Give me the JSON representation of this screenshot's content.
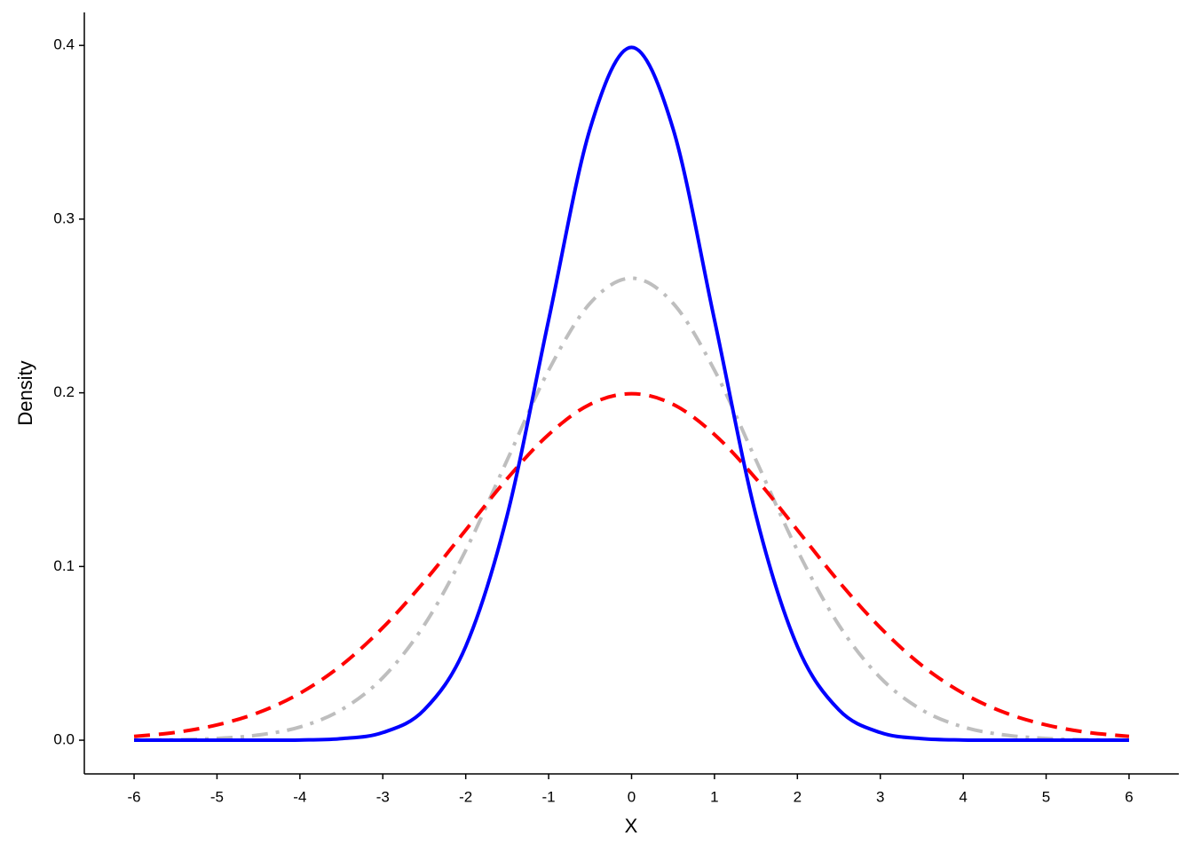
{
  "chart_data": {
    "type": "line",
    "x_label": "X",
    "y_label": "Density",
    "x": [
      -6,
      -5.5,
      -5,
      -4.5,
      -4,
      -3.5,
      -3,
      -2.5,
      -2,
      -1.5,
      -1,
      -0.5,
      0,
      0.5,
      1,
      1.5,
      2,
      2.5,
      3,
      3.5,
      4,
      4.5,
      5,
      5.5,
      6
    ],
    "series": [
      {
        "color": "#bebebe",
        "linetype": "dotdash",
        "values": [
          0.0001,
          0.0003,
          0.001,
          0.003,
          0.0076,
          0.0175,
          0.036,
          0.0663,
          0.1093,
          0.1613,
          0.213,
          0.2516,
          0.266,
          0.2516,
          0.213,
          0.1613,
          0.1093,
          0.0663,
          0.036,
          0.0175,
          0.0076,
          0.003,
          0.001,
          0.0003,
          0.0001
        ]
      },
      {
        "color": "#ff0000",
        "linetype": "dashed",
        "values": [
          0.0022,
          0.0045,
          0.0088,
          0.0159,
          0.027,
          0.0431,
          0.0648,
          0.0913,
          0.121,
          0.1506,
          0.176,
          0.1934,
          0.1995,
          0.1934,
          0.176,
          0.1506,
          0.121,
          0.0913,
          0.0648,
          0.0431,
          0.027,
          0.0159,
          0.0088,
          0.0045,
          0.0022
        ]
      },
      {
        "color": "#0000ff",
        "linetype": "solid",
        "values": [
          0.0,
          0.0,
          0.0,
          0.0,
          0.0001,
          0.0009,
          0.0044,
          0.0175,
          0.054,
          0.1295,
          0.242,
          0.3521,
          0.3989,
          0.3521,
          0.242,
          0.1295,
          0.054,
          0.0175,
          0.0044,
          0.0009,
          0.0001,
          0.0,
          0.0,
          0.0,
          0.0
        ]
      }
    ],
    "xlim": [
      -6.6,
      6.6
    ],
    "ylim": [
      -0.0194,
      0.419
    ],
    "xticks": [
      -6,
      -5,
      -4,
      -3,
      -2,
      -1,
      0,
      1,
      2,
      3,
      4,
      5,
      6
    ],
    "yticks": [
      {
        "value": 0,
        "label": "0.0"
      },
      0.1,
      0.2,
      0.3,
      0.4
    ],
    "grid": false
  }
}
